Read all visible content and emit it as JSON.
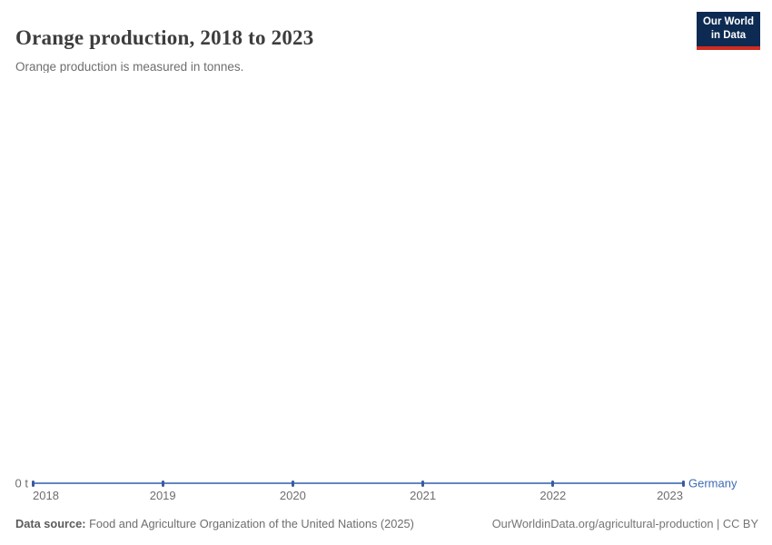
{
  "header": {
    "title": "Orange production, 2018 to 2023",
    "subtitle": "Orange production is measured in tonnes.",
    "logo": {
      "line1": "Our World",
      "line2": "in Data"
    }
  },
  "chart_data": {
    "type": "line",
    "title": "Orange production, 2018 to 2023",
    "subtitle": "Orange production is measured in tonnes.",
    "unit": "tonnes",
    "x": [
      2018,
      2019,
      2020,
      2021,
      2022,
      2023
    ],
    "series": [
      {
        "name": "Germany",
        "values": [
          0,
          0,
          0,
          0,
          0,
          0
        ]
      }
    ],
    "y_axis": {
      "zero_tick_label": "0 t",
      "min": 0,
      "max": 0
    },
    "grid": false,
    "legend_position": "end-of-line-label"
  },
  "colors": {
    "line": "#6486c1",
    "marker": "#3a5a9e",
    "series_label": "#3d6cb3",
    "logo_navy": "#0d2a52",
    "logo_red": "#d12b1f"
  },
  "footer": {
    "source_label": "Data source:",
    "source_text": " Food and Agriculture Organization of the United Nations (2025)",
    "link_text": "OurWorldinData.org/agricultural-production | CC BY"
  }
}
